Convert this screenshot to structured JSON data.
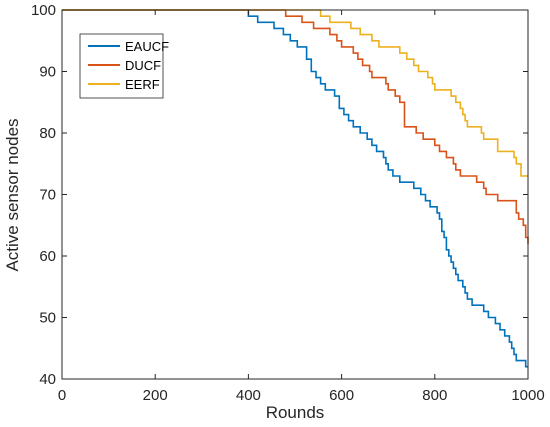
{
  "chart_data": {
    "type": "line",
    "title": "",
    "xlabel": "Rounds",
    "ylabel": "Active sensor nodes",
    "xlim": [
      0,
      1000
    ],
    "ylim": [
      40,
      100
    ],
    "xticks": [
      "0",
      "200",
      "400",
      "600",
      "800",
      "1000"
    ],
    "yticks": [
      "40",
      "50",
      "60",
      "70",
      "80",
      "90",
      "100"
    ],
    "grid": false,
    "legend_position": "top-left",
    "series": [
      {
        "name": "EAUCF",
        "color": "#0072BD",
        "points": [
          [
            0,
            100
          ],
          [
            400,
            100
          ],
          [
            400,
            99
          ],
          [
            420,
            99
          ],
          [
            420,
            98
          ],
          [
            455,
            98
          ],
          [
            455,
            97
          ],
          [
            475,
            97
          ],
          [
            475,
            96
          ],
          [
            490,
            96
          ],
          [
            490,
            95
          ],
          [
            505,
            95
          ],
          [
            505,
            94
          ],
          [
            525,
            94
          ],
          [
            525,
            92
          ],
          [
            535,
            92
          ],
          [
            535,
            90
          ],
          [
            545,
            90
          ],
          [
            545,
            89
          ],
          [
            555,
            89
          ],
          [
            555,
            88
          ],
          [
            565,
            88
          ],
          [
            565,
            87
          ],
          [
            585,
            87
          ],
          [
            585,
            86
          ],
          [
            595,
            86
          ],
          [
            595,
            84
          ],
          [
            605,
            84
          ],
          [
            605,
            83
          ],
          [
            615,
            83
          ],
          [
            615,
            82
          ],
          [
            625,
            82
          ],
          [
            625,
            81
          ],
          [
            640,
            81
          ],
          [
            640,
            80
          ],
          [
            655,
            80
          ],
          [
            655,
            79
          ],
          [
            665,
            79
          ],
          [
            665,
            78
          ],
          [
            675,
            78
          ],
          [
            675,
            77
          ],
          [
            690,
            77
          ],
          [
            690,
            76
          ],
          [
            695,
            76
          ],
          [
            695,
            75
          ],
          [
            700,
            75
          ],
          [
            700,
            74
          ],
          [
            710,
            74
          ],
          [
            710,
            73
          ],
          [
            725,
            73
          ],
          [
            725,
            72
          ],
          [
            755,
            72
          ],
          [
            755,
            71
          ],
          [
            770,
            71
          ],
          [
            770,
            70
          ],
          [
            780,
            70
          ],
          [
            780,
            69
          ],
          [
            790,
            69
          ],
          [
            790,
            68
          ],
          [
            805,
            68
          ],
          [
            805,
            67
          ],
          [
            810,
            67
          ],
          [
            810,
            66
          ],
          [
            815,
            66
          ],
          [
            815,
            64
          ],
          [
            820,
            64
          ],
          [
            820,
            63
          ],
          [
            825,
            63
          ],
          [
            825,
            61
          ],
          [
            830,
            61
          ],
          [
            830,
            60
          ],
          [
            835,
            60
          ],
          [
            835,
            59
          ],
          [
            840,
            59
          ],
          [
            840,
            58
          ],
          [
            845,
            58
          ],
          [
            845,
            57
          ],
          [
            850,
            57
          ],
          [
            850,
            56
          ],
          [
            860,
            56
          ],
          [
            860,
            55
          ],
          [
            865,
            55
          ],
          [
            865,
            54
          ],
          [
            870,
            54
          ],
          [
            870,
            53
          ],
          [
            880,
            53
          ],
          [
            880,
            52
          ],
          [
            905,
            52
          ],
          [
            905,
            51
          ],
          [
            915,
            51
          ],
          [
            915,
            50
          ],
          [
            930,
            50
          ],
          [
            930,
            49
          ],
          [
            940,
            49
          ],
          [
            940,
            48
          ],
          [
            950,
            48
          ],
          [
            950,
            47
          ],
          [
            960,
            47
          ],
          [
            960,
            46
          ],
          [
            965,
            46
          ],
          [
            965,
            45
          ],
          [
            970,
            45
          ],
          [
            970,
            44
          ],
          [
            975,
            44
          ],
          [
            975,
            43
          ],
          [
            995,
            43
          ],
          [
            995,
            42
          ],
          [
            1000,
            42
          ]
        ]
      },
      {
        "name": "DUCF",
        "color": "#D95319",
        "points": [
          [
            0,
            100
          ],
          [
            480,
            100
          ],
          [
            480,
            99
          ],
          [
            515,
            99
          ],
          [
            515,
            98
          ],
          [
            540,
            98
          ],
          [
            540,
            97
          ],
          [
            575,
            97
          ],
          [
            575,
            96
          ],
          [
            590,
            96
          ],
          [
            590,
            95
          ],
          [
            600,
            95
          ],
          [
            600,
            94
          ],
          [
            625,
            94
          ],
          [
            625,
            93
          ],
          [
            635,
            93
          ],
          [
            635,
            92
          ],
          [
            645,
            92
          ],
          [
            645,
            91
          ],
          [
            660,
            91
          ],
          [
            660,
            90
          ],
          [
            665,
            90
          ],
          [
            665,
            89
          ],
          [
            695,
            89
          ],
          [
            695,
            88
          ],
          [
            700,
            88
          ],
          [
            700,
            87
          ],
          [
            715,
            87
          ],
          [
            715,
            86
          ],
          [
            725,
            86
          ],
          [
            725,
            85
          ],
          [
            735,
            85
          ],
          [
            735,
            81
          ],
          [
            760,
            81
          ],
          [
            760,
            80
          ],
          [
            775,
            80
          ],
          [
            775,
            79
          ],
          [
            800,
            79
          ],
          [
            800,
            78
          ],
          [
            810,
            78
          ],
          [
            810,
            77
          ],
          [
            825,
            77
          ],
          [
            825,
            76
          ],
          [
            840,
            76
          ],
          [
            840,
            75
          ],
          [
            845,
            75
          ],
          [
            845,
            74
          ],
          [
            855,
            74
          ],
          [
            855,
            73
          ],
          [
            890,
            73
          ],
          [
            890,
            72
          ],
          [
            905,
            72
          ],
          [
            905,
            71
          ],
          [
            910,
            71
          ],
          [
            910,
            70
          ],
          [
            935,
            70
          ],
          [
            935,
            69
          ],
          [
            975,
            69
          ],
          [
            975,
            67
          ],
          [
            980,
            67
          ],
          [
            980,
            66
          ],
          [
            990,
            66
          ],
          [
            990,
            65
          ],
          [
            995,
            65
          ],
          [
            995,
            63
          ],
          [
            1000,
            63
          ],
          [
            1000,
            62
          ]
        ]
      },
      {
        "name": "EERF",
        "color": "#EDB120",
        "points": [
          [
            0,
            100
          ],
          [
            555,
            100
          ],
          [
            555,
            99
          ],
          [
            575,
            99
          ],
          [
            575,
            98
          ],
          [
            620,
            98
          ],
          [
            620,
            97
          ],
          [
            640,
            97
          ],
          [
            640,
            96
          ],
          [
            665,
            96
          ],
          [
            665,
            95
          ],
          [
            680,
            95
          ],
          [
            680,
            94
          ],
          [
            725,
            94
          ],
          [
            725,
            93
          ],
          [
            740,
            93
          ],
          [
            740,
            92
          ],
          [
            755,
            92
          ],
          [
            755,
            91
          ],
          [
            765,
            91
          ],
          [
            765,
            90
          ],
          [
            785,
            90
          ],
          [
            785,
            89
          ],
          [
            795,
            89
          ],
          [
            795,
            88
          ],
          [
            800,
            88
          ],
          [
            800,
            87
          ],
          [
            835,
            87
          ],
          [
            835,
            86
          ],
          [
            845,
            86
          ],
          [
            845,
            85
          ],
          [
            855,
            85
          ],
          [
            855,
            84
          ],
          [
            860,
            84
          ],
          [
            860,
            83
          ],
          [
            865,
            83
          ],
          [
            865,
            82
          ],
          [
            870,
            82
          ],
          [
            870,
            81
          ],
          [
            900,
            81
          ],
          [
            900,
            80
          ],
          [
            905,
            80
          ],
          [
            905,
            79
          ],
          [
            935,
            79
          ],
          [
            935,
            77
          ],
          [
            970,
            77
          ],
          [
            970,
            76
          ],
          [
            975,
            76
          ],
          [
            975,
            75
          ],
          [
            985,
            75
          ],
          [
            985,
            73
          ],
          [
            1000,
            73
          ]
        ]
      }
    ]
  }
}
